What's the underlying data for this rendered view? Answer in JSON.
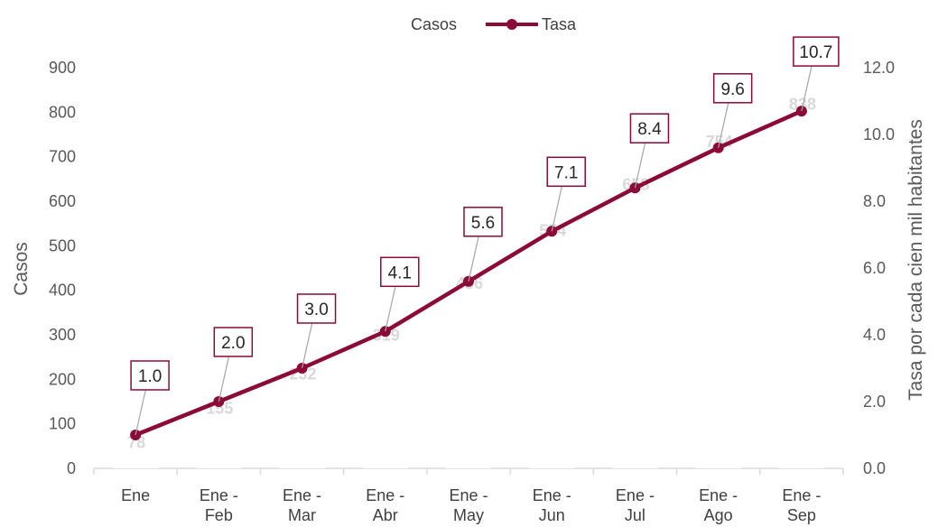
{
  "chart_data": {
    "type": "bar",
    "categories": [
      [
        "Ene"
      ],
      [
        "Ene -",
        "Feb"
      ],
      [
        "Ene -",
        "Mar"
      ],
      [
        "Ene -",
        "Abr"
      ],
      [
        "Ene -",
        "May"
      ],
      [
        "Ene -",
        "Jun"
      ],
      [
        "Ene -",
        "Jul"
      ],
      [
        "Ene -",
        "Ago"
      ],
      [
        "Ene -",
        "Sep"
      ]
    ],
    "series": [
      {
        "name": "Casos",
        "kind": "bar",
        "axis": "left",
        "values": [
          78,
          155,
          232,
          319,
          436,
          554,
          658,
          754,
          838
        ],
        "color": "#ffffff",
        "label_color": "#d9d9d9"
      },
      {
        "name": "Tasa",
        "kind": "line",
        "axis": "right",
        "values": [
          1.0,
          2.0,
          3.0,
          4.1,
          5.6,
          7.1,
          8.4,
          9.6,
          10.7
        ],
        "color": "#8b0a38"
      }
    ],
    "ylabel": "Casos",
    "y2label": "Tasa por cada cien mil habitantes",
    "ylim": [
      0,
      900
    ],
    "y2lim": [
      0,
      12
    ],
    "yticks": [
      "0",
      "100",
      "200",
      "300",
      "400",
      "500",
      "600",
      "700",
      "800",
      "900"
    ],
    "y2ticks": [
      "0.0",
      "2.0",
      "4.0",
      "6.0",
      "8.0",
      "10.0",
      "12.0"
    ],
    "legend_position": "top-center",
    "grid": false
  }
}
